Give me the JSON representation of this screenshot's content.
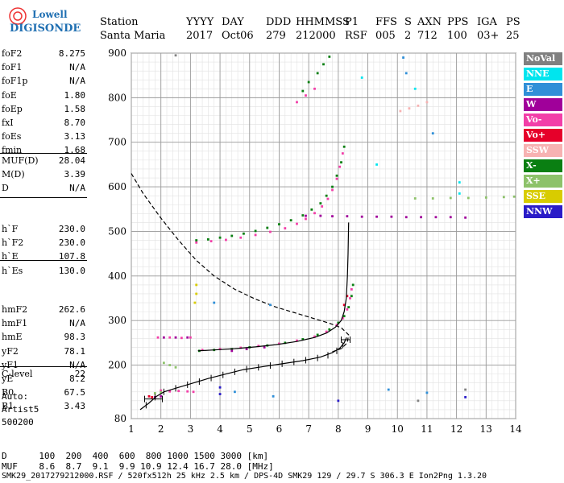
{
  "logo": {
    "line1": "Lowell",
    "line2": "DIGISONDE"
  },
  "header": {
    "station_label": "Station",
    "station_value": "Santa Maria",
    "yyyy_label": "YYYY",
    "yyyy_value": "2017",
    "day_label": "DAY",
    "day_value": "Oct06",
    "ddd_label": "DDD",
    "ddd_value": "279",
    "hhmmss_label": "HHMMSS",
    "hhmmss_value": "212000",
    "p1_label": "P1",
    "p1_value": "RSF",
    "ffs_label": "FFS",
    "ffs_value": "005",
    "s_label": "S",
    "s_value": "2",
    "axn_label": "AXN",
    "axn_value": "712",
    "pps_label": "PPS",
    "pps_value": "100",
    "iga_label": "IGA",
    "iga_value": "03+",
    "ps_label": "PS",
    "ps_value": "25"
  },
  "params_group1": [
    {
      "key": "foF2",
      "value": "8.275"
    },
    {
      "key": "foF1",
      "value": "N/A"
    },
    {
      "key": "foF1p",
      "value": "N/A"
    },
    {
      "key": "foE",
      "value": "1.80"
    },
    {
      "key": "foEp",
      "value": "1.58"
    },
    {
      "key": "fxI",
      "value": "8.70"
    },
    {
      "key": "foEs",
      "value": "3.13"
    },
    {
      "key": "fmin",
      "value": "1.68"
    }
  ],
  "params_group2": [
    {
      "key": "MUF(D)",
      "value": "28.04"
    },
    {
      "key": "M(D)",
      "value": "3.39"
    },
    {
      "key": "D",
      "value": "N/A"
    }
  ],
  "params_group3": [
    {
      "key": "h`F",
      "value": "230.0"
    },
    {
      "key": "h`F2",
      "value": "230.0"
    },
    {
      "key": "h`E",
      "value": "107.8"
    },
    {
      "key": "h`Es",
      "value": "130.0"
    }
  ],
  "params_group4": [
    {
      "key": "hmF2",
      "value": "262.6"
    },
    {
      "key": "hmF1",
      "value": "N/A"
    },
    {
      "key": "hmE",
      "value": "98.3"
    },
    {
      "key": "yF2",
      "value": "78.1"
    },
    {
      "key": "yF1",
      "value": "N/A"
    },
    {
      "key": "yE",
      "value": "8.2"
    },
    {
      "key": "B0",
      "value": "67.5"
    },
    {
      "key": "B1",
      "value": "3.43"
    }
  ],
  "params_group5": [
    {
      "key": "C-level",
      "value": "22"
    }
  ],
  "auto": {
    "line1": "Auto:",
    "line2": "Artist5",
    "line3": "500200"
  },
  "legend": [
    {
      "label": "NoVal",
      "bg": "#808080",
      "fg": "#ffffff"
    },
    {
      "label": "NNE",
      "bg": "#00e5ee",
      "fg": "#ffffff"
    },
    {
      "label": "E",
      "bg": "#2f8fd8",
      "fg": "#ffffff"
    },
    {
      "label": "W",
      "bg": "#a0009a",
      "fg": "#ffffff"
    },
    {
      "label": "Vo-",
      "bg": "#f23fa8",
      "fg": "#ffffff"
    },
    {
      "label": "Vo+",
      "bg": "#e6002a",
      "fg": "#ffffff"
    },
    {
      "label": "SSW",
      "bg": "#f7b2b2",
      "fg": "#ffffff"
    },
    {
      "label": "X-",
      "bg": "#0a7f12",
      "fg": "#ffffff"
    },
    {
      "label": "X+",
      "bg": "#8dc26a",
      "fg": "#ffffff"
    },
    {
      "label": "SSE",
      "bg": "#d8cc00",
      "fg": "#ffffff"
    },
    {
      "label": "NNW",
      "bg": "#2a1cc8",
      "fg": "#ffffff"
    }
  ],
  "footer": {
    "d_row": "D      100  200  400  600  800 1000 1500 3000 [km]",
    "muf_row": "MUF    8.6  8.7  9.1  9.9 10.9 12.4 16.7 28.0 [MHz]",
    "info_row": "SMK29_2017279212000.RSF / 520fx512h 25 kHz 2.5 km / DPS-4D SMK29 129 / 29.7 S 306.3 E Ion2Png 1.3.20"
  },
  "chart_data": {
    "type": "scatter",
    "xlim": [
      1,
      14
    ],
    "ylim": [
      80,
      900
    ],
    "x_ticks": [
      1,
      2,
      3,
      4,
      5,
      6,
      7,
      8,
      9,
      10,
      11,
      12,
      13,
      14
    ],
    "y_ticks": [
      80,
      200,
      300,
      400,
      500,
      600,
      700,
      800,
      900
    ],
    "grid": true,
    "legend_position": "right",
    "series": [
      {
        "name": "",
        "color": "#0a7f12",
        "points": [
          [
            3.2,
            480
          ],
          [
            3.6,
            482
          ],
          [
            4.0,
            486
          ],
          [
            4.4,
            490
          ],
          [
            4.8,
            495
          ],
          [
            5.2,
            501
          ],
          [
            5.6,
            508
          ],
          [
            6.0,
            516
          ],
          [
            6.4,
            525
          ],
          [
            6.8,
            536
          ],
          [
            7.1,
            549
          ],
          [
            7.4,
            563
          ],
          [
            7.6,
            580
          ],
          [
            7.8,
            600
          ],
          [
            7.95,
            625
          ],
          [
            8.1,
            655
          ],
          [
            8.2,
            690
          ],
          [
            3.3,
            232
          ],
          [
            3.8,
            234
          ],
          [
            4.4,
            236
          ],
          [
            5.0,
            240
          ],
          [
            5.6,
            244
          ],
          [
            6.2,
            250
          ],
          [
            6.8,
            258
          ],
          [
            7.3,
            268
          ],
          [
            7.7,
            280
          ],
          [
            8.0,
            295
          ],
          [
            8.2,
            310
          ],
          [
            8.35,
            330
          ],
          [
            8.45,
            355
          ],
          [
            8.5,
            380
          ],
          [
            7.0,
            835
          ],
          [
            7.3,
            855
          ],
          [
            7.5,
            875
          ],
          [
            7.7,
            892
          ],
          [
            6.8,
            815
          ]
        ]
      },
      {
        "name": "",
        "color": "#f23fa8",
        "points": [
          [
            3.2,
            475
          ],
          [
            3.7,
            478
          ],
          [
            4.2,
            481
          ],
          [
            4.7,
            486
          ],
          [
            5.2,
            492
          ],
          [
            5.7,
            499
          ],
          [
            6.2,
            507
          ],
          [
            6.6,
            517
          ],
          [
            6.9,
            528
          ],
          [
            7.2,
            541
          ],
          [
            7.45,
            556
          ],
          [
            7.65,
            573
          ],
          [
            7.8,
            593
          ],
          [
            7.95,
            618
          ],
          [
            8.05,
            645
          ],
          [
            8.15,
            675
          ],
          [
            3.4,
            234
          ],
          [
            4.0,
            236
          ],
          [
            4.7,
            239
          ],
          [
            5.3,
            243
          ],
          [
            6.0,
            248
          ],
          [
            6.6,
            255
          ],
          [
            7.2,
            264
          ],
          [
            7.6,
            275
          ],
          [
            7.95,
            290
          ],
          [
            8.15,
            305
          ],
          [
            8.3,
            325
          ],
          [
            8.4,
            350
          ],
          [
            8.45,
            370
          ],
          [
            1.9,
            262
          ],
          [
            2.3,
            262
          ],
          [
            2.7,
            261
          ],
          [
            3.0,
            262
          ],
          [
            2.0,
            143
          ],
          [
            2.3,
            141
          ],
          [
            2.6,
            142
          ],
          [
            2.9,
            141
          ],
          [
            3.1,
            140
          ],
          [
            6.6,
            790
          ],
          [
            6.9,
            805
          ],
          [
            7.2,
            820
          ]
        ]
      },
      {
        "name": "",
        "color": "#a0009a",
        "points": [
          [
            6.9,
            535
          ],
          [
            7.4,
            535
          ],
          [
            7.8,
            534
          ],
          [
            8.3,
            534
          ],
          [
            8.8,
            533
          ],
          [
            9.3,
            533
          ],
          [
            9.8,
            533
          ],
          [
            10.3,
            532
          ],
          [
            10.8,
            532
          ],
          [
            11.3,
            532
          ],
          [
            11.8,
            532
          ],
          [
            12.3,
            531
          ],
          [
            2.1,
            262
          ],
          [
            2.5,
            262
          ],
          [
            2.9,
            262
          ],
          [
            4.4,
            232
          ],
          [
            4.9,
            236
          ],
          [
            5.5,
            240
          ],
          [
            1.8,
            128
          ],
          [
            2.0,
            130
          ]
        ]
      },
      {
        "name": "",
        "color": "#8dc26a",
        "points": [
          [
            10.6,
            574
          ],
          [
            11.2,
            574
          ],
          [
            11.8,
            575
          ],
          [
            12.4,
            575
          ],
          [
            13.0,
            576
          ],
          [
            13.6,
            577
          ],
          [
            13.95,
            578
          ],
          [
            2.1,
            205
          ],
          [
            2.3,
            200
          ],
          [
            2.5,
            195
          ],
          [
            1.8,
            137
          ],
          [
            2.0,
            139
          ]
        ]
      },
      {
        "name": "",
        "color": "#e6002a",
        "points": [
          [
            1.6,
            130
          ],
          [
            1.7,
            128
          ],
          [
            8.2,
            335
          ],
          [
            8.3,
            355
          ]
        ]
      },
      {
        "name": "",
        "color": "#2f8fd8",
        "points": [
          [
            10.2,
            890
          ],
          [
            10.3,
            855
          ],
          [
            11.2,
            720
          ],
          [
            3.8,
            340
          ],
          [
            5.7,
            335
          ],
          [
            9.7,
            145
          ],
          [
            11.0,
            138
          ],
          [
            5.8,
            130
          ],
          [
            4.5,
            140
          ]
        ]
      },
      {
        "name": "",
        "color": "#00e5ee",
        "points": [
          [
            8.8,
            845
          ],
          [
            9.3,
            650
          ],
          [
            10.6,
            820
          ],
          [
            12.1,
            610
          ],
          [
            12.1,
            585
          ]
        ]
      },
      {
        "name": "",
        "color": "#f7b2b2",
        "points": [
          [
            10.1,
            770
          ],
          [
            10.4,
            776
          ],
          [
            10.7,
            782
          ],
          [
            11.0,
            790
          ]
        ]
      },
      {
        "name": "",
        "color": "#2a1cc8",
        "points": [
          [
            4.0,
            150
          ],
          [
            4.0,
            135
          ],
          [
            8.0,
            120
          ],
          [
            12.3,
            128
          ]
        ]
      },
      {
        "name": "",
        "color": "#d8cc00",
        "points": [
          [
            3.2,
            380
          ],
          [
            3.2,
            360
          ],
          [
            3.15,
            340
          ]
        ]
      },
      {
        "name": "",
        "color": "#808080",
        "points": [
          [
            2.5,
            895
          ],
          [
            10.7,
            120
          ],
          [
            12.3,
            145
          ]
        ]
      }
    ],
    "profile_curve": [
      [
        1.3,
        100
      ],
      [
        1.6,
        115
      ],
      [
        1.85,
        130
      ],
      [
        2.1,
        140
      ],
      [
        2.6,
        150
      ],
      [
        3.1,
        160
      ],
      [
        3.6,
        170
      ],
      [
        4.2,
        180
      ],
      [
        4.8,
        190
      ],
      [
        5.5,
        197
      ],
      [
        6.1,
        203
      ],
      [
        6.8,
        210
      ],
      [
        7.4,
        218
      ],
      [
        7.8,
        228
      ],
      [
        8.05,
        238
      ],
      [
        8.2,
        250
      ],
      [
        8.28,
        262
      ]
    ],
    "profile_ticks": [
      [
        1.5,
        110
      ],
      [
        1.8,
        128
      ],
      [
        2.1,
        140
      ],
      [
        2.5,
        148
      ],
      [
        2.9,
        156
      ],
      [
        3.3,
        163
      ],
      [
        3.7,
        171
      ],
      [
        4.1,
        178
      ],
      [
        4.5,
        185
      ],
      [
        4.9,
        191
      ],
      [
        5.3,
        195
      ],
      [
        5.7,
        199
      ],
      [
        6.1,
        203
      ],
      [
        6.5,
        207
      ],
      [
        6.9,
        211
      ],
      [
        7.3,
        216
      ],
      [
        7.65,
        222
      ],
      [
        7.95,
        232
      ],
      [
        8.15,
        245
      ]
    ],
    "profile_errbars": [
      [
        1.75,
        124,
        1.45,
        2.05
      ],
      [
        8.25,
        257,
        8.1,
        8.4
      ]
    ],
    "trace_curve": [
      [
        3.25,
        232
      ],
      [
        3.8,
        234
      ],
      [
        4.5,
        237
      ],
      [
        5.2,
        241
      ],
      [
        5.9,
        246
      ],
      [
        6.6,
        253
      ],
      [
        7.2,
        262
      ],
      [
        7.6,
        272
      ],
      [
        7.9,
        285
      ],
      [
        8.1,
        300
      ],
      [
        8.2,
        320
      ],
      [
        8.27,
        350
      ],
      [
        8.31,
        400
      ],
      [
        8.33,
        450
      ],
      [
        8.35,
        520
      ]
    ],
    "dashed_curve": [
      [
        1.0,
        630
      ],
      [
        1.4,
        585
      ],
      [
        2.0,
        530
      ],
      [
        2.6,
        480
      ],
      [
        3.2,
        435
      ],
      [
        3.8,
        400
      ],
      [
        4.5,
        370
      ],
      [
        5.2,
        348
      ],
      [
        5.9,
        330
      ],
      [
        6.6,
        316
      ],
      [
        7.2,
        304
      ],
      [
        7.7,
        294
      ],
      [
        8.1,
        284
      ],
      [
        8.35,
        268
      ],
      [
        8.3,
        250
      ],
      [
        8.1,
        237
      ],
      [
        7.8,
        230
      ]
    ]
  }
}
